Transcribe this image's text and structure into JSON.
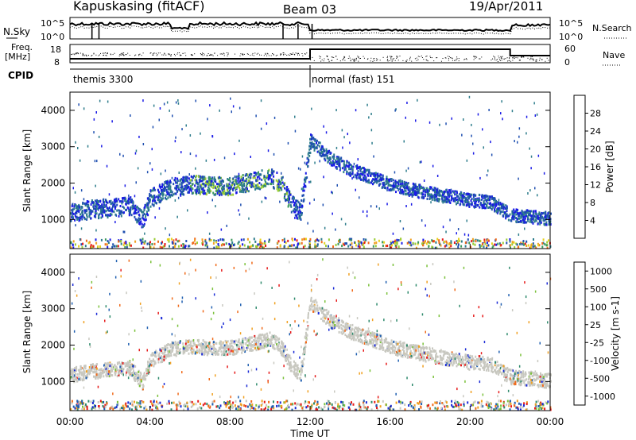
{
  "header": {
    "station": "Kapuskasing (fitACF)",
    "beam": "Beam 03",
    "date": "19/Apr/2011"
  },
  "sky_panel": {
    "left_label": "N.Sky",
    "right_label": "N.Search",
    "left_top": "10^5",
    "left_bottom": "10^0",
    "right_top": "10^5",
    "right_bottom": "10^0"
  },
  "freq_panel": {
    "label_line1": "Freq.",
    "label_line2": "[MHz]",
    "left_top": "18",
    "left_bottom": "8",
    "right_top": "60",
    "right_bottom": "0",
    "right_label": "Nave"
  },
  "cpid": {
    "label": "CPID",
    "mode1": "themis 3300",
    "mode2": "normal (fast) 151",
    "mode_change_hour": 12
  },
  "colors": {
    "power": [
      "#1a1ae6",
      "#1f4fb0",
      "#2e7d8c",
      "#3c9a5c",
      "#99cc33",
      "#e6d21a",
      "#f0a020",
      "#f06a1a",
      "#e61a1a"
    ],
    "velocity": [
      "#1a2ad6",
      "#1f5fb0",
      "#2e8a6c",
      "#7ac13a",
      "#c8c8c0",
      "#c8c8c0",
      "#f0a020",
      "#f06a1a",
      "#e61a1a"
    ]
  },
  "chart_data": [
    {
      "type": "heatmap",
      "name": "power",
      "ylabel": "Slant Range [km]",
      "ylim": [
        200,
        4500
      ],
      "yticks": [
        1000,
        2000,
        3000,
        4000
      ],
      "colorbar": {
        "label": "Power [dB]",
        "ticks": [
          "4",
          "8",
          "12",
          "16",
          "20",
          "24",
          "28"
        ],
        "range": [
          0,
          30
        ]
      },
      "band": {
        "hours": [
          0,
          1,
          2,
          3,
          3.6,
          4,
          5,
          6,
          7,
          8,
          9,
          10,
          10.5,
          11,
          11.5,
          12,
          13,
          14,
          15,
          16,
          17,
          18,
          19,
          20,
          21,
          22,
          23,
          24
        ],
        "center_km": [
          1200,
          1300,
          1350,
          1400,
          1000,
          1600,
          1900,
          2000,
          1950,
          1950,
          2050,
          2200,
          2000,
          1500,
          1200,
          3200,
          2700,
          2400,
          2200,
          2000,
          1850,
          1750,
          1650,
          1550,
          1500,
          1150,
          1100,
          1050
        ]
      }
    },
    {
      "type": "heatmap",
      "name": "velocity",
      "xlabel": "Time UT",
      "ylabel": "Slant Range [km]",
      "ylim": [
        200,
        4500
      ],
      "yticks": [
        1000,
        2000,
        3000,
        4000
      ],
      "xticks": [
        "00:00",
        "04:00",
        "08:00",
        "12:00",
        "16:00",
        "20:00",
        "00:00"
      ],
      "colorbar": {
        "label": "Velocity [m s-1]",
        "ticks": [
          "1000",
          "500",
          "100",
          "25",
          "-25",
          "-100",
          "-500",
          "-1000"
        ]
      }
    }
  ]
}
